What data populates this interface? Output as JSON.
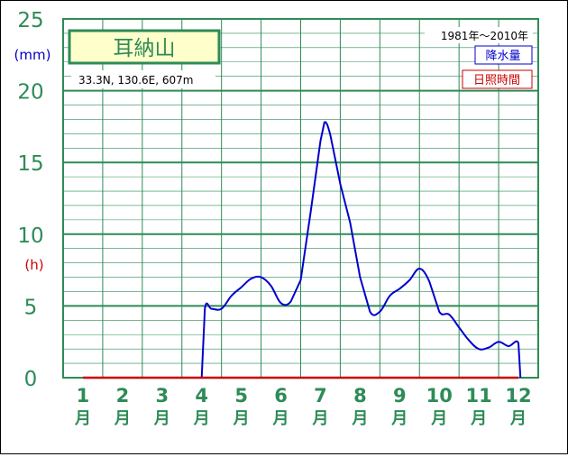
{
  "chart_data": {
    "type": "line",
    "title": "耳納山",
    "subtitle": "33.3N, 130.6E, 607m",
    "period": "1981年〜2010年",
    "legend": [
      {
        "label": "降水量",
        "color": "#0000cc"
      },
      {
        "label": "日照時間",
        "color": "#cc0000"
      }
    ],
    "y_units": [
      {
        "label": "(mm)",
        "color": "#0000cc"
      },
      {
        "label": "(h)",
        "color": "#cc0000"
      }
    ],
    "ylim": [
      0,
      25
    ],
    "yticks": [
      "0",
      "5",
      "10",
      "15",
      "20",
      "25"
    ],
    "categories": [
      "1",
      "2",
      "3",
      "4",
      "5",
      "6",
      "7",
      "8",
      "9",
      "10",
      "11",
      "12"
    ],
    "category_suffix": "月",
    "legend_position": "top-right",
    "grid": true,
    "series": [
      {
        "name": "降水量",
        "color": "#0000cc",
        "x": [
          3.5,
          3.58,
          3.75,
          4.0,
          4.25,
          4.5,
          4.75,
          5.0,
          5.25,
          5.5,
          5.75,
          6.0,
          6.25,
          6.5,
          6.6,
          6.75,
          7.0,
          7.25,
          7.5,
          7.75,
          8.0,
          8.25,
          8.5,
          8.75,
          9.0,
          9.25,
          9.5,
          9.75,
          10.0,
          10.25,
          10.5,
          10.75,
          11.0,
          11.25,
          11.5,
          11.55
        ],
        "y": [
          0,
          4.8,
          4.8,
          4.8,
          5.7,
          6.3,
          6.9,
          7.0,
          6.4,
          5.2,
          5.3,
          6.8,
          11.5,
          16.5,
          17.8,
          16.9,
          13.5,
          10.8,
          7.0,
          4.6,
          4.6,
          5.7,
          6.2,
          6.8,
          7.6,
          6.7,
          4.6,
          4.4,
          3.5,
          2.6,
          2.0,
          2.1,
          2.5,
          2.2,
          2.4,
          0
        ],
        "note": "smooth monthly-precipitation curve, drawn from April to November"
      },
      {
        "name": "日照時間",
        "color": "#cc0000",
        "x": [
          0.5,
          11.5
        ],
        "y": [
          0,
          0
        ]
      }
    ]
  }
}
